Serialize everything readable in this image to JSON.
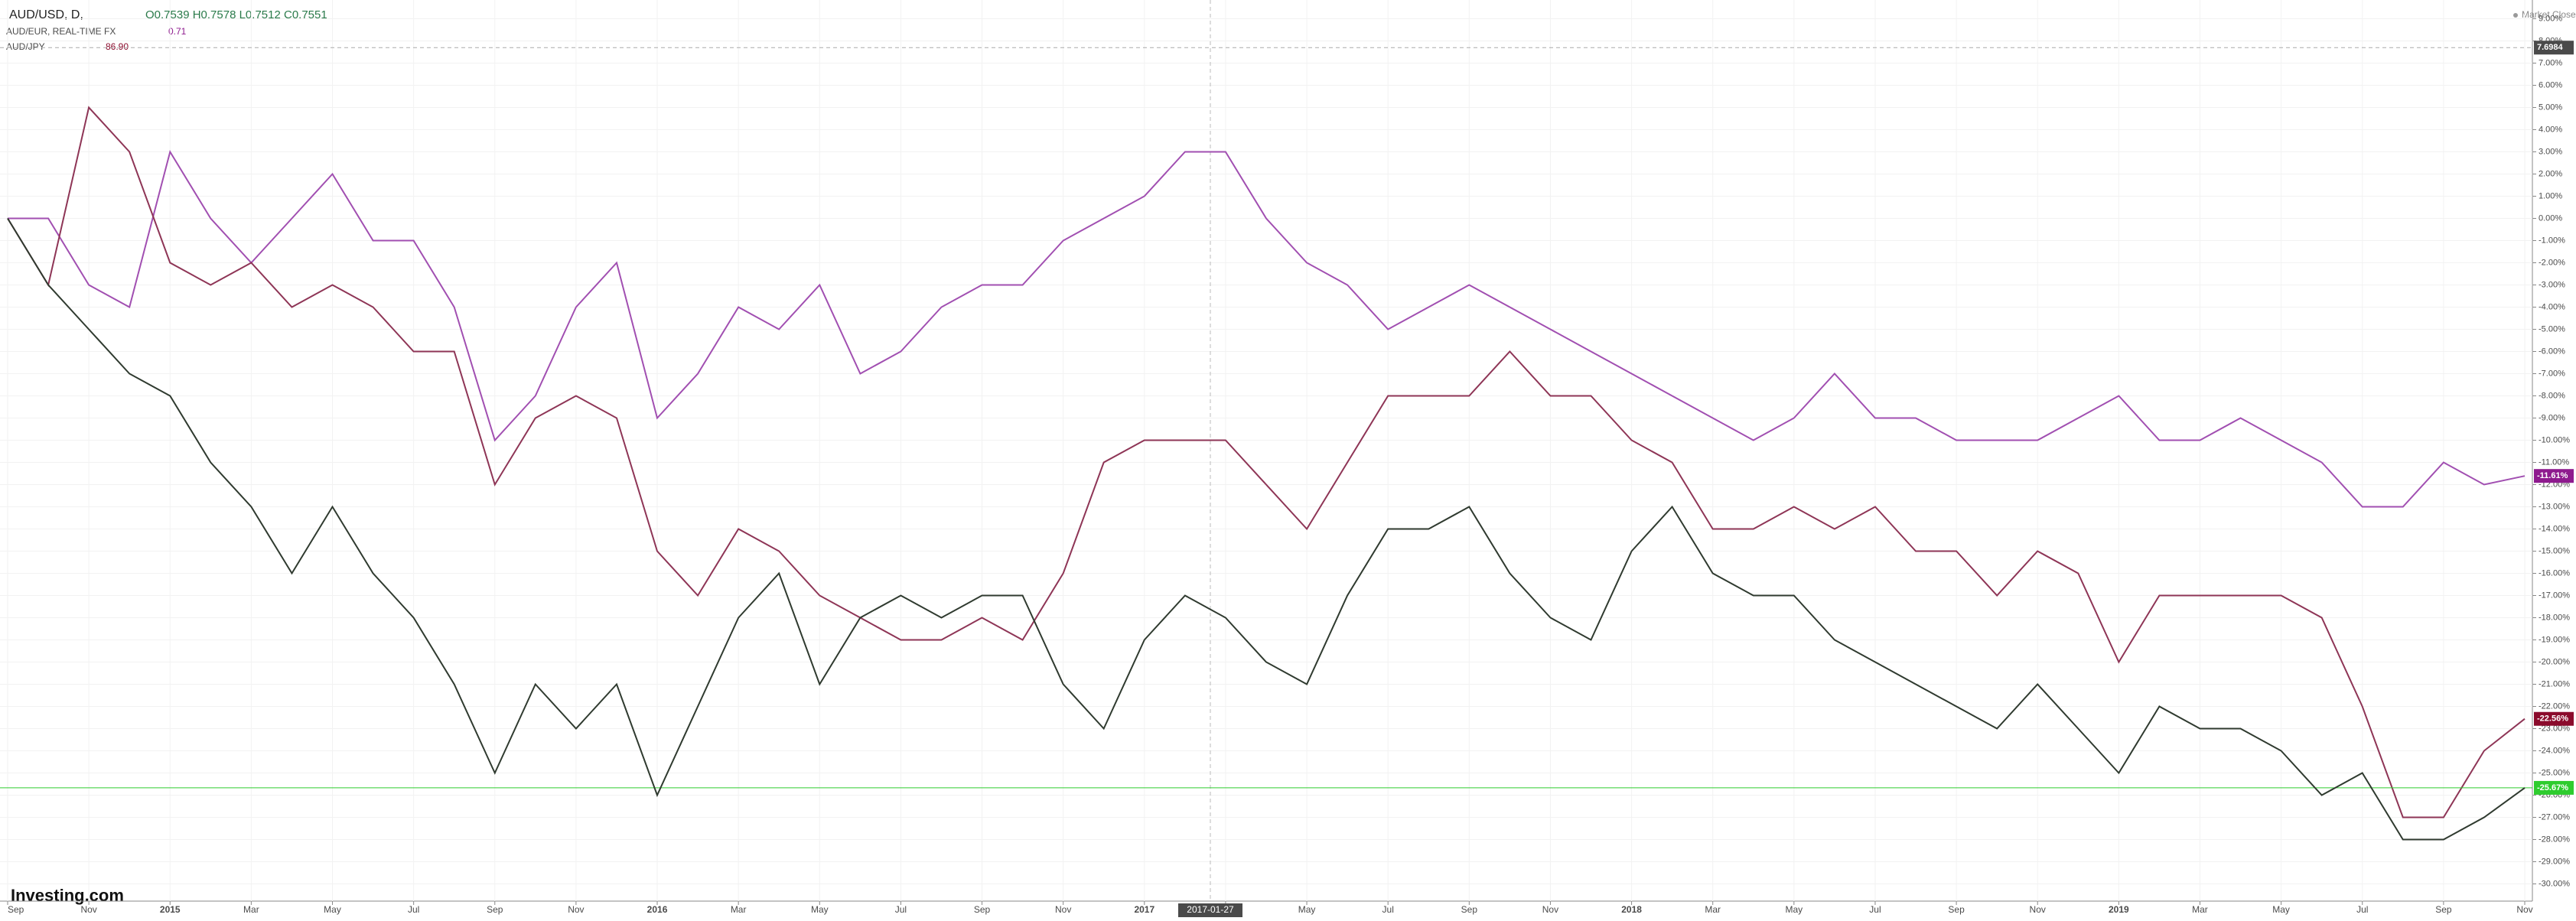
{
  "header": {
    "symbol": "AUD/USD, D,",
    "ohlc": "O0.7539 H0.7578 L0.7512 C0.7551",
    "compare1": "AUD/EUR, REAL-TIME FX",
    "compare1_value": "0.71",
    "compare2": "AUD/JPY",
    "compare2_value": "86.90",
    "status": "Market Closed",
    "logo": "Investing.com"
  },
  "chart_data": {
    "type": "line",
    "categories": [
      "Sep",
      null,
      "Nov",
      null,
      "2015",
      null,
      "Mar",
      null,
      "May",
      null,
      "Jul",
      null,
      "Sep",
      null,
      "Nov",
      null,
      "2016",
      null,
      "Mar",
      null,
      "May",
      null,
      "Jul",
      null,
      "Sep",
      null,
      "Nov",
      null,
      "2017",
      null,
      "Mar",
      null,
      "May",
      null,
      "Jul",
      null,
      "Sep",
      null,
      "Nov",
      null,
      "2018",
      null,
      "Mar",
      null,
      "May",
      null,
      "Jul",
      null,
      "Sep",
      null,
      "Nov",
      null,
      "2019",
      null,
      "Mar",
      null,
      "May",
      null,
      "Jul",
      null,
      "Sep",
      null,
      "Nov"
    ],
    "series": [
      {
        "name": "AUD/EUR",
        "color": "#a14fb1",
        "label_color": "#8e1a8e",
        "values": [
          0,
          0,
          -3,
          -4,
          3,
          0,
          -2,
          0,
          2,
          -1,
          -1,
          -4,
          -10,
          -8,
          -4,
          -2,
          -9,
          -7,
          -4,
          -5,
          -3,
          -7,
          -6,
          -4,
          -3,
          -3,
          -1,
          0,
          1,
          3,
          3,
          0,
          -2,
          -3,
          -5,
          -4,
          -3,
          -4,
          -5,
          -6,
          -7,
          -8,
          -9,
          -10,
          -9,
          -7,
          -9,
          -9,
          -10,
          -10,
          -10,
          -9,
          -8,
          -10,
          -10,
          -9,
          -10,
          -11,
          -13,
          -13,
          -11,
          -12,
          -11.61
        ],
        "value_labels": [
          null,
          null,
          null,
          null,
          null,
          null,
          null,
          null,
          null,
          null,
          null,
          null,
          null,
          null,
          null,
          null,
          null,
          null,
          null,
          null,
          null,
          null,
          null,
          null,
          null,
          null,
          null,
          null,
          null,
          null,
          null,
          null,
          null,
          null,
          null,
          null,
          null,
          null,
          null,
          null,
          null,
          null,
          null,
          null,
          null,
          null,
          null,
          null,
          null,
          null,
          null,
          null,
          null,
          null,
          null,
          null,
          null,
          null,
          null,
          null,
          null,
          null,
          "-11.61%"
        ]
      },
      {
        "name": "AUD/JPY",
        "color": "#8e3556",
        "label_color": "#8b0b2c",
        "values": [
          0,
          -3,
          5,
          3,
          -2,
          -3,
          -2,
          -4,
          -3,
          -4,
          -6,
          -6,
          -12,
          -9,
          -8,
          -9,
          -15,
          -17,
          -14,
          -15,
          -17,
          -18,
          -19,
          -19,
          -18,
          -19,
          -16,
          -11,
          -10,
          -10,
          -10,
          -12,
          -14,
          -11,
          -8,
          -8,
          -8,
          -6,
          -8,
          -8,
          -10,
          -11,
          -14,
          -14,
          -13,
          -14,
          -13,
          -15,
          -15,
          -17,
          -15,
          -16,
          -20,
          -17,
          -17,
          -17,
          -17,
          -18,
          -22,
          -27,
          -27,
          -24,
          -22.56
        ],
        "value_labels": [
          null,
          null,
          null,
          null,
          null,
          null,
          null,
          null,
          null,
          null,
          null,
          null,
          null,
          null,
          null,
          null,
          null,
          null,
          null,
          null,
          null,
          null,
          null,
          null,
          null,
          null,
          null,
          null,
          null,
          null,
          null,
          null,
          null,
          null,
          null,
          null,
          null,
          null,
          null,
          null,
          null,
          null,
          null,
          null,
          null,
          null,
          null,
          null,
          null,
          null,
          null,
          null,
          null,
          null,
          null,
          null,
          null,
          null,
          null,
          null,
          null,
          null,
          "-22.56%"
        ]
      },
      {
        "name": "AUD/USD",
        "color": "#2f3a2f",
        "label_color": "#2ecc2e",
        "price_line": true,
        "values": [
          0,
          -3,
          -5,
          -7,
          -8,
          -11,
          -13,
          -16,
          -13,
          -16,
          -18,
          -21,
          -25,
          -21,
          -23,
          -21,
          -26,
          -22,
          -18,
          -16,
          -21,
          -18,
          -17,
          -18,
          -17,
          -17,
          -21,
          -23,
          -19,
          -17,
          -18,
          -20,
          -21,
          -17,
          -14,
          -14,
          -13,
          -16,
          -18,
          -19,
          -15,
          -13,
          -16,
          -17,
          -17,
          -19,
          -20,
          -21,
          -22,
          -23,
          -21,
          -23,
          -25,
          -22,
          -23,
          -23,
          -24,
          -26,
          -25,
          -28,
          -28,
          -27,
          -25.67
        ],
        "value_labels": [
          null,
          null,
          null,
          null,
          null,
          null,
          null,
          null,
          null,
          null,
          null,
          null,
          null,
          null,
          null,
          null,
          null,
          null,
          null,
          null,
          null,
          null,
          null,
          null,
          null,
          null,
          null,
          null,
          null,
          null,
          null,
          null,
          null,
          null,
          null,
          null,
          null,
          null,
          null,
          null,
          null,
          null,
          null,
          null,
          null,
          null,
          null,
          null,
          null,
          null,
          null,
          null,
          null,
          null,
          null,
          null,
          null,
          null,
          null,
          null,
          null,
          null,
          "-25.67%"
        ]
      }
    ],
    "ylim": [
      -30.5,
      9.5
    ],
    "yticks": [
      {
        "value": 9,
        "label": "9.00%"
      },
      {
        "value": 8,
        "label": "8.00%"
      },
      {
        "value": 7,
        "label": "7.00%"
      },
      {
        "value": 6,
        "label": "6.00%"
      },
      {
        "value": 5,
        "label": "5.00%"
      },
      {
        "value": 4,
        "label": "4.00%"
      },
      {
        "value": 3,
        "label": "3.00%"
      },
      {
        "value": 2,
        "label": "2.00%"
      },
      {
        "value": 1,
        "label": "1.00%"
      },
      {
        "value": 0,
        "label": "0.00%"
      },
      {
        "value": -1,
        "label": "-1.00%"
      },
      {
        "value": -2,
        "label": "-2.00%"
      },
      {
        "value": -3,
        "label": "-3.00%"
      },
      {
        "value": -4,
        "label": "-4.00%"
      },
      {
        "value": -5,
        "label": "-5.00%"
      },
      {
        "value": -6,
        "label": "-6.00%"
      },
      {
        "value": -7,
        "label": "-7.00%"
      },
      {
        "value": -8,
        "label": "-8.00%"
      },
      {
        "value": -9,
        "label": "-9.00%"
      },
      {
        "value": -10,
        "label": "-10.00%"
      },
      {
        "value": -11,
        "label": "-11.00%"
      },
      {
        "value": -12,
        "label": "-12.00%"
      },
      {
        "value": -13,
        "label": "-13.00%"
      },
      {
        "value": -14,
        "label": "-14.00%"
      },
      {
        "value": -15,
        "label": "-15.00%"
      },
      {
        "value": -16,
        "label": "-16.00%"
      },
      {
        "value": -17,
        "label": "-17.00%"
      },
      {
        "value": -18,
        "label": "-18.00%"
      },
      {
        "value": -19,
        "label": "-19.00%"
      },
      {
        "value": -20,
        "label": "-20.00%"
      },
      {
        "value": -21,
        "label": "-21.00%"
      },
      {
        "value": -22,
        "label": "-22.00%"
      },
      {
        "value": -23,
        "label": "-23.00%"
      },
      {
        "value": -24,
        "label": "-24.00%"
      },
      {
        "value": -25,
        "label": "-25.00%"
      },
      {
        "value": -26,
        "label": "-26.00%"
      },
      {
        "value": -27,
        "label": "-27.00%"
      },
      {
        "value": -28,
        "label": "-28.00%"
      },
      {
        "value": -29,
        "label": "-29.00%"
      },
      {
        "value": -30,
        "label": "-30.00%"
      }
    ],
    "grid": true,
    "crosshair": {
      "y": 7.6984,
      "x_label": "2017-01-27"
    }
  }
}
